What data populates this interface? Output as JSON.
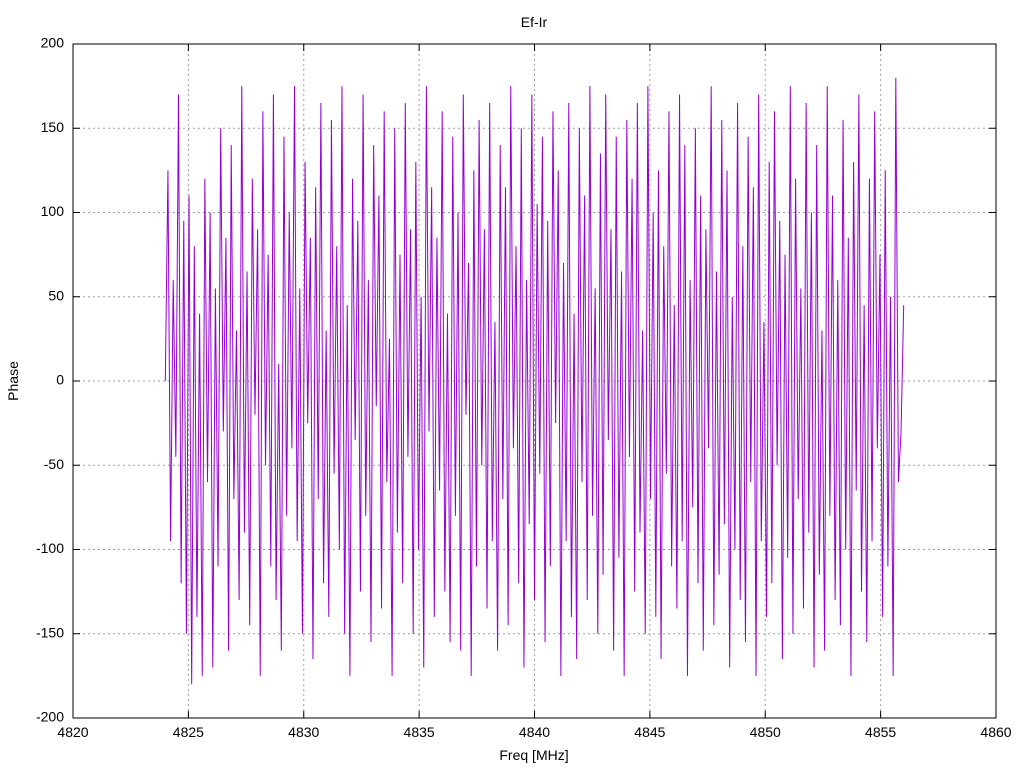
{
  "chart_data": {
    "type": "line",
    "title": "Ef-Ir",
    "xlabel": "Freq [MHz]",
    "ylabel": "Phase",
    "xlim": [
      4820,
      4860
    ],
    "ylim": [
      -200,
      200
    ],
    "x_ticks": [
      4820,
      4825,
      4830,
      4835,
      4840,
      4845,
      4850,
      4855,
      4860
    ],
    "y_ticks": [
      -200,
      -150,
      -100,
      -50,
      0,
      50,
      100,
      150,
      200
    ],
    "x_tick_labels": [
      "4820",
      "4825",
      "4830",
      "4835",
      "4840",
      "4845",
      "4850",
      "4855",
      "4860"
    ],
    "y_tick_labels": [
      "-200",
      "-150",
      "-100",
      "-50",
      "0",
      "50",
      "100",
      "150",
      "200"
    ],
    "grid": true,
    "series_color": "#9400d3",
    "series": [
      {
        "x_start": 4824.0,
        "x_end": 4856.0,
        "values": [
          0,
          125,
          -95,
          60,
          -45,
          170,
          -120,
          95,
          -150,
          110,
          -180,
          80,
          -140,
          40,
          -175,
          120,
          -60,
          100,
          -170,
          55,
          -110,
          150,
          -30,
          85,
          -160,
          140,
          -70,
          30,
          -130,
          175,
          -90,
          65,
          -145,
          120,
          -20,
          90,
          -175,
          160,
          -50,
          75,
          -110,
          170,
          -130,
          10,
          -160,
          145,
          -80,
          100,
          -40,
          175,
          -95,
          55,
          -150,
          130,
          -25,
          85,
          -165,
          115,
          -70,
          165,
          -120,
          30,
          -140,
          155,
          -55,
          80,
          -100,
          175,
          -150,
          45,
          -175,
          120,
          -35,
          95,
          -125,
          170,
          -80,
          60,
          -155,
          140,
          -15,
          110,
          -135,
          160,
          -60,
          25,
          -175,
          150,
          -90,
          75,
          -120,
          165,
          -45,
          90,
          -150,
          130,
          -100,
          50,
          -170,
          175,
          -30,
          115,
          -140,
          85,
          -65,
          160,
          -125,
          40,
          -155,
          145,
          -80,
          100,
          -160,
          170,
          -20,
          70,
          -175,
          125,
          -110,
          155,
          -50,
          90,
          -135,
          165,
          -95,
          35,
          -160,
          140,
          -70,
          115,
          -145,
          175,
          -40,
          80,
          -120,
          150,
          -170,
          60,
          -85,
          170,
          -130,
          105,
          -55,
          145,
          -155,
          95,
          -110,
          160,
          -25,
          125,
          -175,
          70,
          -95,
          165,
          -140,
          40,
          -165,
          150,
          -60,
          110,
          -130,
          175,
          -80,
          55,
          -150,
          135,
          -115,
          170,
          -35,
          90,
          -160,
          145,
          -105,
          65,
          -175,
          155,
          -45,
          120,
          -125,
          165,
          -90,
          30,
          -150,
          175,
          -70,
          100,
          -140,
          125,
          -165,
          80,
          -55,
          160,
          -110,
          45,
          -135,
          170,
          -95,
          140,
          -175,
          60,
          -75,
          150,
          -120,
          110,
          -160,
          90,
          -40,
          175,
          -145,
          65,
          -115,
          155,
          -85,
          125,
          -170,
          50,
          -100,
          165,
          -130,
          80,
          -155,
          145,
          -60,
          115,
          -175,
          170,
          -95,
          35,
          -140,
          130,
          -120,
          160,
          -50,
          95,
          -165,
          75,
          -105,
          175,
          -150,
          120,
          -70,
          55,
          -135,
          165,
          -90,
          100,
          -170,
          140,
          -115,
          30,
          -160,
          175,
          -80,
          110,
          -130,
          60,
          -145,
          155,
          -100,
          85,
          -175,
          130,
          -65,
          170,
          -125,
          45,
          -155,
          120,
          -95,
          160,
          -40,
          75,
          -140,
          125,
          -110,
          50,
          -175,
          180,
          -60,
          -30,
          45
        ]
      }
    ]
  }
}
